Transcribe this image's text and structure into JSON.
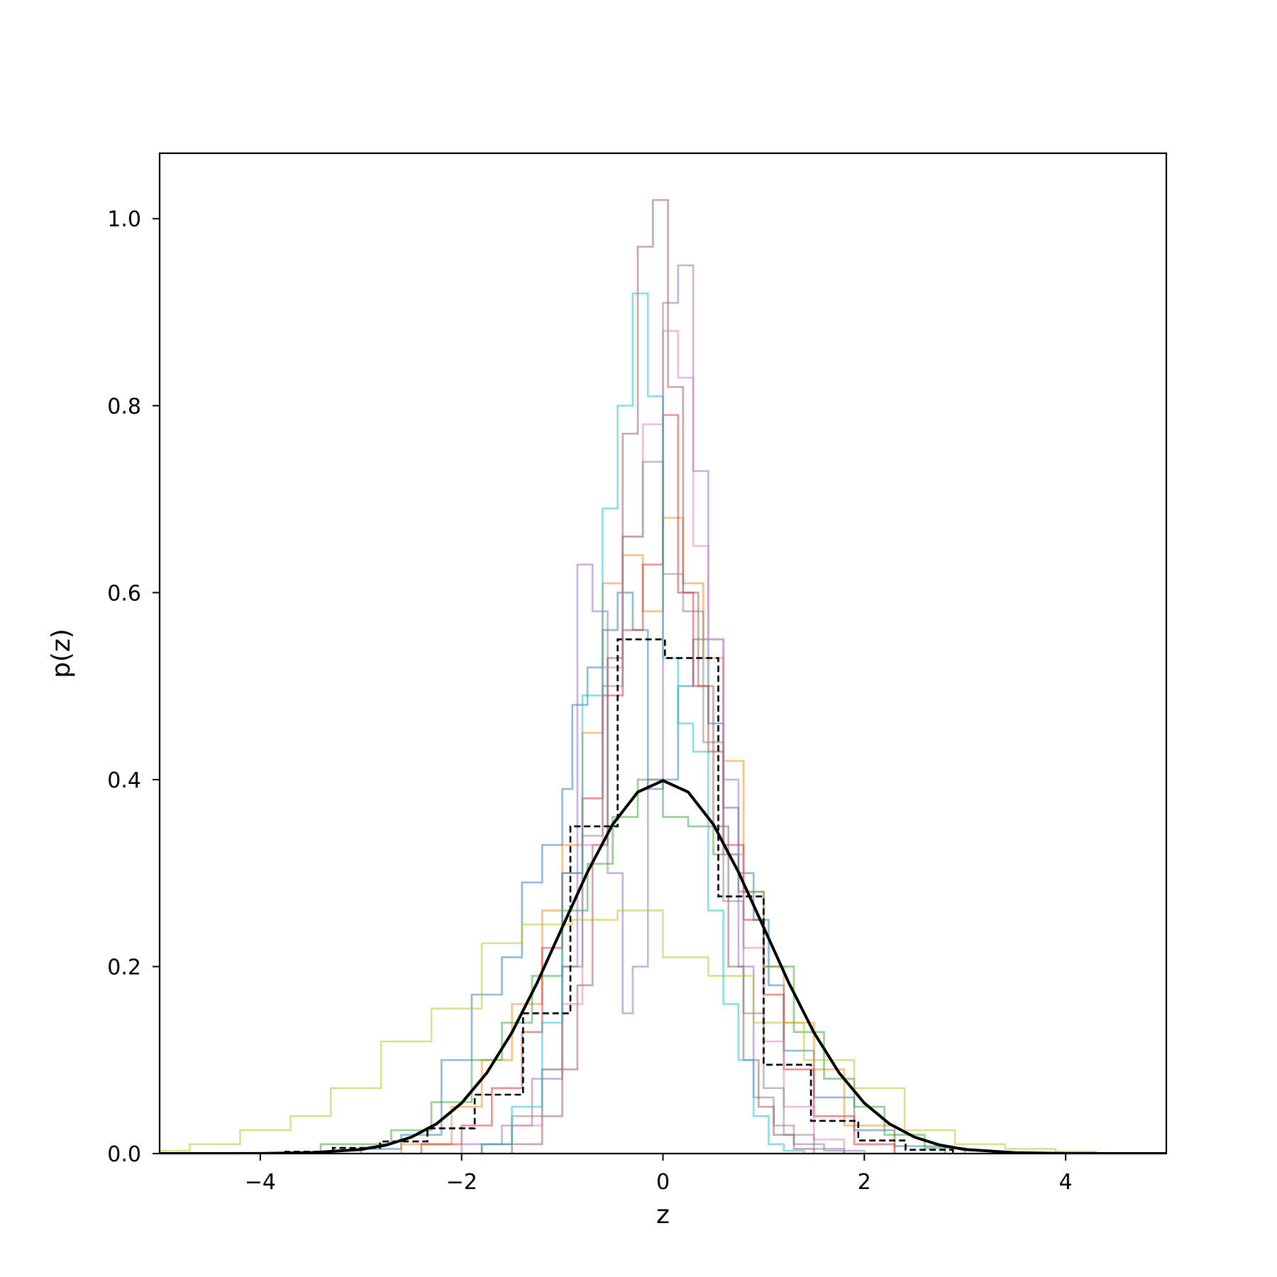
{
  "chart_data": {
    "type": "line",
    "title": "",
    "xlabel": "z",
    "ylabel": "p(z)",
    "xlim": [
      -5.0,
      5.0
    ],
    "ylim": [
      0.0,
      1.07
    ],
    "x_ticks": [
      -4,
      -2,
      0,
      2,
      4
    ],
    "x_tick_labels": [
      "−4",
      "−2",
      "0",
      "2",
      "4"
    ],
    "y_ticks": [
      0.0,
      0.2,
      0.4,
      0.6,
      0.8,
      1.0
    ],
    "y_tick_labels": [
      "0.0",
      "0.2",
      "0.4",
      "0.6",
      "0.8",
      "1.0"
    ],
    "grid": false,
    "legend": "none",
    "series": [
      {
        "kind": "step-histogram",
        "color": "#1f77b4",
        "alpha": 0.5,
        "edges": [
          -3.0,
          -2.6,
          -2.2,
          -1.9,
          -1.6,
          -1.4,
          -1.2,
          -1.0,
          -0.9,
          -0.75,
          -0.6,
          -0.45,
          -0.3,
          -0.15,
          0.0,
          0.15,
          0.3,
          0.45,
          0.6,
          0.75,
          0.9,
          1.05,
          1.2,
          1.5,
          1.9,
          2.3,
          2.8
        ],
        "values": [
          0.005,
          0.02,
          0.1,
          0.17,
          0.21,
          0.29,
          0.33,
          0.39,
          0.48,
          0.52,
          0.56,
          0.6,
          0.56,
          0.39,
          0.4,
          0.5,
          0.55,
          0.46,
          0.37,
          0.3,
          0.25,
          0.18,
          0.11,
          0.06,
          0.025,
          0.008
        ]
      },
      {
        "kind": "step-histogram",
        "color": "#ff7f0e",
        "alpha": 0.5,
        "edges": [
          -2.6,
          -2.1,
          -1.8,
          -1.5,
          -1.2,
          -1.0,
          -0.8,
          -0.6,
          -0.4,
          -0.2,
          0.0,
          0.2,
          0.4,
          0.6,
          0.8,
          1.0,
          1.2,
          1.5,
          1.8,
          2.3
        ],
        "values": [
          0.01,
          0.05,
          0.1,
          0.16,
          0.26,
          0.33,
          0.45,
          0.61,
          0.64,
          0.58,
          0.68,
          0.61,
          0.53,
          0.42,
          0.28,
          0.2,
          0.14,
          0.09,
          0.03
        ]
      },
      {
        "kind": "step-histogram",
        "color": "#2ca02c",
        "alpha": 0.5,
        "edges": [
          -3.4,
          -2.7,
          -2.3,
          -1.9,
          -1.6,
          -1.3,
          -1.0,
          -0.75,
          -0.5,
          -0.25,
          0.0,
          0.25,
          0.5,
          0.75,
          1.0,
          1.3,
          1.6,
          1.9,
          2.2,
          2.6,
          3.0
        ],
        "values": [
          0.01,
          0.025,
          0.055,
          0.1,
          0.14,
          0.19,
          0.26,
          0.31,
          0.36,
          0.4,
          0.36,
          0.35,
          0.32,
          0.28,
          0.2,
          0.13,
          0.08,
          0.05,
          0.02,
          0.006
        ]
      },
      {
        "kind": "step-histogram",
        "color": "#d62728",
        "alpha": 0.5,
        "edges": [
          -2.4,
          -2.0,
          -1.7,
          -1.4,
          -1.2,
          -1.0,
          -0.8,
          -0.6,
          -0.4,
          -0.2,
          0.0,
          0.15,
          0.3,
          0.45,
          0.6,
          0.8,
          1.0,
          1.2,
          1.5,
          1.9,
          2.3
        ],
        "values": [
          0.01,
          0.03,
          0.07,
          0.13,
          0.22,
          0.3,
          0.38,
          0.49,
          0.56,
          0.63,
          0.79,
          0.6,
          0.5,
          0.43,
          0.33,
          0.25,
          0.17,
          0.09,
          0.04,
          0.01
        ]
      },
      {
        "kind": "step-histogram",
        "color": "#9467bd",
        "alpha": 0.5,
        "edges": [
          -2.0,
          -1.6,
          -1.3,
          -1.0,
          -0.85,
          -0.7,
          -0.55,
          -0.4,
          -0.3,
          -0.15,
          0.0,
          0.15,
          0.3,
          0.45,
          0.6,
          0.75,
          0.9,
          1.1,
          1.3,
          1.6,
          2.0
        ],
        "values": [
          0.01,
          0.03,
          0.08,
          0.2,
          0.63,
          0.58,
          0.3,
          0.15,
          0.2,
          0.4,
          0.91,
          0.95,
          0.73,
          0.55,
          0.4,
          0.2,
          0.06,
          0.03,
          0.01,
          0.003
        ]
      },
      {
        "kind": "step-histogram",
        "color": "#8c564b",
        "alpha": 0.5,
        "edges": [
          -1.5,
          -1.2,
          -1.0,
          -0.85,
          -0.7,
          -0.55,
          -0.4,
          -0.25,
          -0.1,
          0.05,
          0.2,
          0.35,
          0.5,
          0.65,
          0.8,
          0.95,
          1.1,
          1.3,
          1.5
        ],
        "values": [
          0.01,
          0.04,
          0.09,
          0.18,
          0.33,
          0.53,
          0.77,
          0.97,
          1.02,
          0.82,
          0.6,
          0.5,
          0.35,
          0.2,
          0.1,
          0.05,
          0.02,
          0.005
        ]
      },
      {
        "kind": "step-histogram",
        "color": "#e377c2",
        "alpha": 0.5,
        "edges": [
          -1.8,
          -1.5,
          -1.2,
          -1.0,
          -0.8,
          -0.6,
          -0.4,
          -0.2,
          0.0,
          0.15,
          0.3,
          0.45,
          0.6,
          0.8,
          1.0,
          1.2,
          1.5,
          1.8
        ],
        "values": [
          0.01,
          0.03,
          0.09,
          0.16,
          0.33,
          0.52,
          0.66,
          0.78,
          0.88,
          0.83,
          0.65,
          0.55,
          0.32,
          0.22,
          0.12,
          0.05,
          0.015
        ]
      },
      {
        "kind": "step-histogram",
        "color": "#7f7f7f",
        "alpha": 0.5,
        "edges": [
          -1.8,
          -1.5,
          -1.2,
          -1.0,
          -0.8,
          -0.6,
          -0.4,
          -0.2,
          0.0,
          0.2,
          0.4,
          0.6,
          0.8,
          1.0,
          1.2,
          1.5,
          1.8
        ],
        "values": [
          0.01,
          0.04,
          0.09,
          0.2,
          0.34,
          0.5,
          0.66,
          0.74,
          0.62,
          0.58,
          0.44,
          0.27,
          0.15,
          0.07,
          0.02,
          0.005
        ]
      },
      {
        "kind": "step-histogram",
        "color": "#bcbd22",
        "alpha": 0.5,
        "edges": [
          -5.0,
          -4.7,
          -4.2,
          -3.7,
          -3.3,
          -2.8,
          -2.3,
          -1.8,
          -1.4,
          -0.9,
          -0.45,
          0.0,
          0.45,
          0.9,
          1.4,
          1.9,
          2.4,
          2.9,
          3.4,
          3.9,
          4.3
        ],
        "values": [
          0.003,
          0.01,
          0.025,
          0.04,
          0.07,
          0.12,
          0.155,
          0.225,
          0.245,
          0.25,
          0.26,
          0.21,
          0.19,
          0.14,
          0.1,
          0.07,
          0.025,
          0.01,
          0.005,
          0.002
        ]
      },
      {
        "kind": "step-histogram",
        "color": "#17becf",
        "alpha": 0.5,
        "edges": [
          -1.8,
          -1.5,
          -1.2,
          -1.0,
          -0.8,
          -0.6,
          -0.45,
          -0.3,
          -0.15,
          0.0,
          0.15,
          0.3,
          0.45,
          0.6,
          0.75,
          0.9,
          1.05,
          1.2,
          1.4
        ],
        "values": [
          0.01,
          0.05,
          0.14,
          0.3,
          0.49,
          0.69,
          0.8,
          0.92,
          0.81,
          0.53,
          0.46,
          0.43,
          0.26,
          0.16,
          0.1,
          0.04,
          0.01,
          0.003
        ]
      },
      {
        "kind": "step-histogram",
        "color": "#000000",
        "alpha": 1.0,
        "dashed": true,
        "edges": [
          -3.75,
          -3.28,
          -2.81,
          -2.34,
          -1.87,
          -1.39,
          -0.92,
          -0.45,
          0.02,
          0.55,
          1.0,
          1.47,
          1.94,
          2.41,
          2.88
        ],
        "values": [
          0.002,
          0.006,
          0.013,
          0.027,
          0.063,
          0.15,
          0.35,
          0.55,
          0.53,
          0.275,
          0.095,
          0.035,
          0.014,
          0.004
        ]
      },
      {
        "kind": "curve",
        "name": "",
        "color": "#000000",
        "function": "standard-normal-pdf",
        "x": [
          -5.0,
          -4.5,
          -4.0,
          -3.5,
          -3.0,
          -2.75,
          -2.5,
          -2.25,
          -2.0,
          -1.75,
          -1.5,
          -1.25,
          -1.0,
          -0.75,
          -0.5,
          -0.25,
          0.0,
          0.25,
          0.5,
          0.75,
          1.0,
          1.25,
          1.5,
          1.75,
          2.0,
          2.25,
          2.5,
          2.75,
          3.0,
          3.5,
          4.0,
          4.5,
          5.0
        ],
        "y": [
          0.0,
          0.0,
          0.0001,
          0.0009,
          0.0044,
          0.0091,
          0.0175,
          0.0317,
          0.054,
          0.0863,
          0.1295,
          0.1826,
          0.242,
          0.3011,
          0.3521,
          0.3867,
          0.3989,
          0.3867,
          0.3521,
          0.3011,
          0.242,
          0.1826,
          0.1295,
          0.0863,
          0.054,
          0.0317,
          0.0175,
          0.0091,
          0.0044,
          0.0009,
          0.0001,
          0.0,
          0.0
        ]
      }
    ]
  }
}
